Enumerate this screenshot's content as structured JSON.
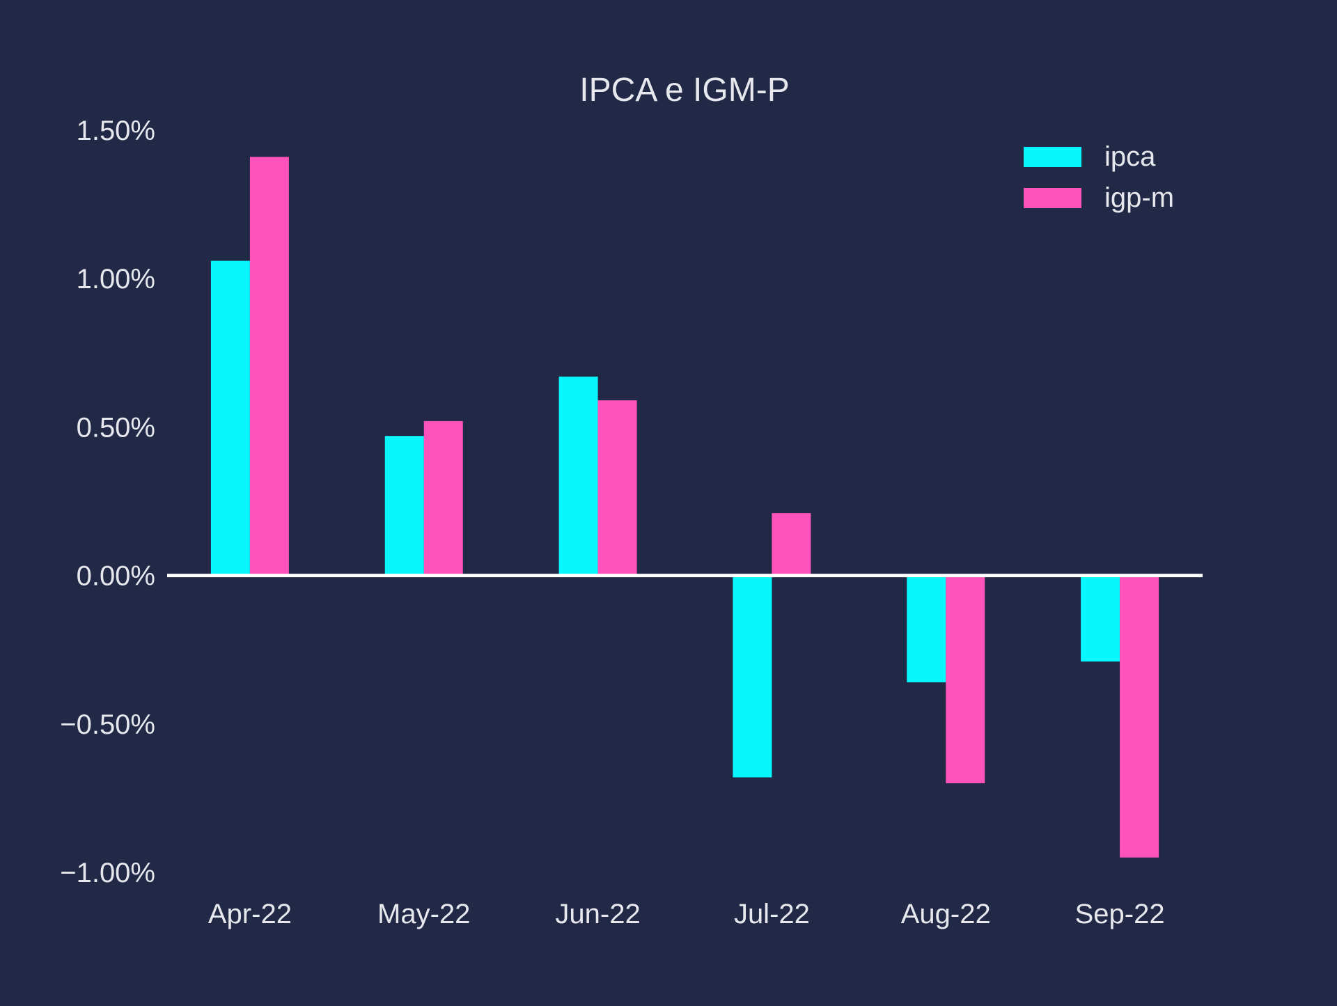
{
  "chart_data": {
    "type": "bar",
    "title": "IPCA e IGM-P",
    "xlabel": "",
    "ylabel": "",
    "categories": [
      "Apr-22",
      "May-22",
      "Jun-22",
      "Jul-22",
      "Aug-22",
      "Sep-22"
    ],
    "series": [
      {
        "name": "ipca",
        "values": [
          1.06,
          0.47,
          0.67,
          -0.68,
          -0.36,
          -0.29
        ],
        "color": "#08F7FE"
      },
      {
        "name": "igp-m",
        "values": [
          1.41,
          0.52,
          0.59,
          0.21,
          -0.7,
          -0.95
        ],
        "color": "#FE53BB"
      }
    ],
    "ylim": [
      -1.0,
      1.5
    ],
    "yticks": [
      -1.0,
      -0.5,
      0.0,
      0.5,
      1.0,
      1.5
    ],
    "ytick_labels": [
      "−1.00%",
      "−0.50%",
      "0.00%",
      "0.50%",
      "1.00%",
      "1.50%"
    ],
    "grid": false,
    "legend_position": "top-right",
    "colors": {
      "background": "#212946",
      "text": "#E6E8EE",
      "zero_line": "#FFFFFF"
    }
  }
}
